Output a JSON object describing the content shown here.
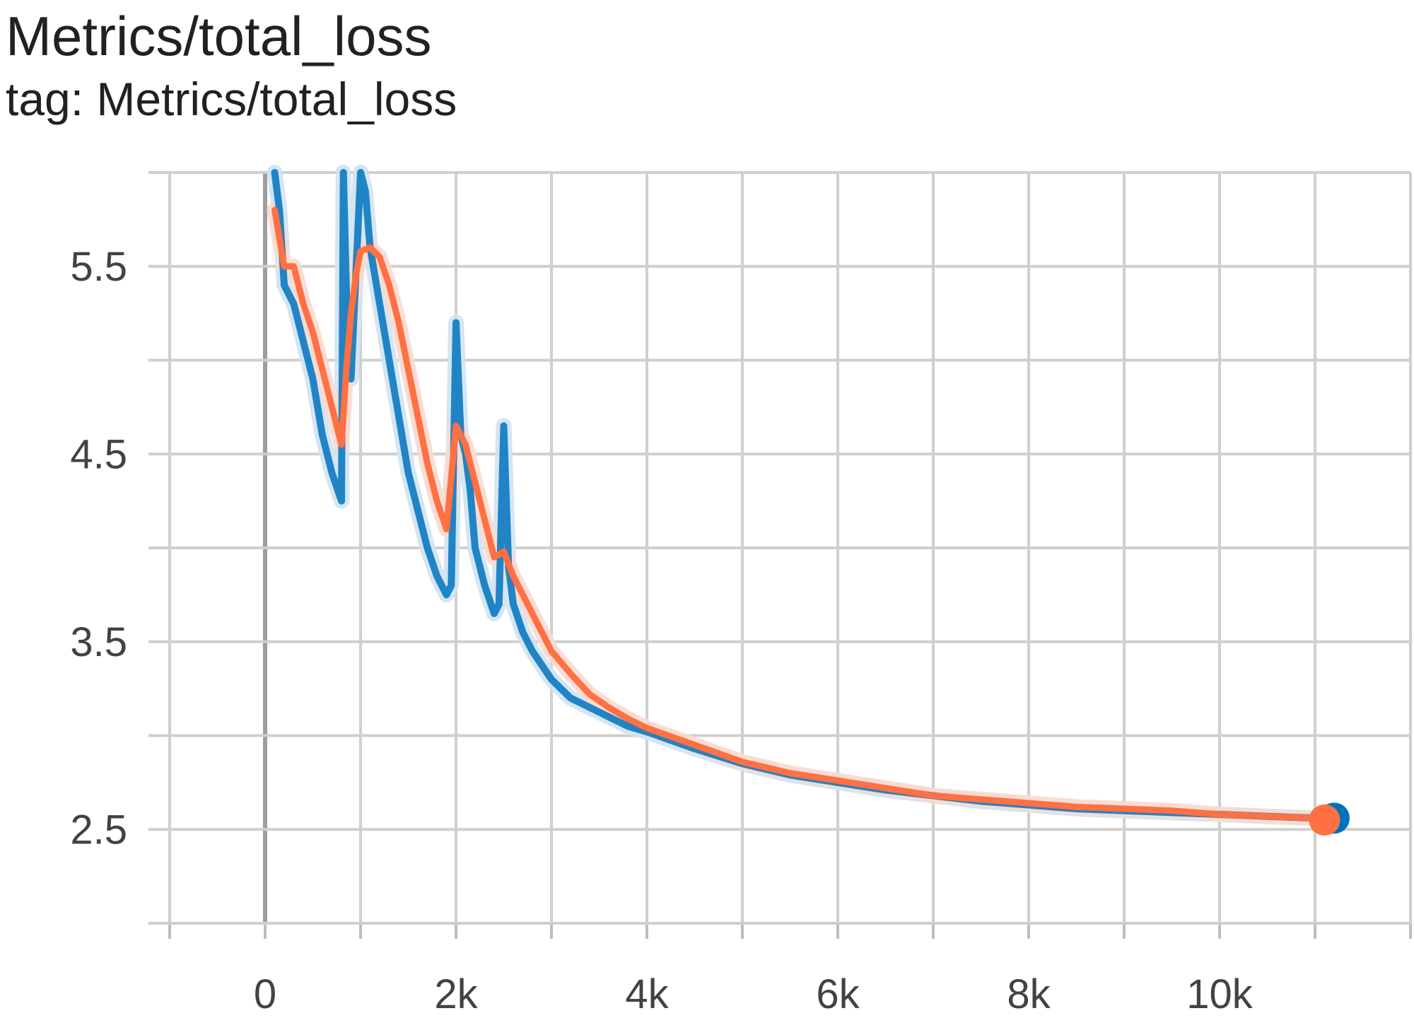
{
  "header": {
    "title": "Metrics/total_loss",
    "tag_line": "tag: Metrics/total_loss"
  },
  "chart_data": {
    "type": "line",
    "title": "Metrics/total_loss",
    "subtitle": "tag: Metrics/total_loss",
    "xlabel": "",
    "ylabel": "",
    "xlim": [
      -1000,
      12000
    ],
    "ylim": [
      2.0,
      6.0
    ],
    "x_ticks": [
      0,
      2000,
      4000,
      6000,
      8000,
      10000
    ],
    "x_tick_labels": [
      "0",
      "2k",
      "4k",
      "6k",
      "8k",
      "10k"
    ],
    "y_ticks": [
      2.5,
      3.5,
      4.5,
      5.5
    ],
    "y_tick_labels": [
      "2.5",
      "3.5",
      "4.5",
      "5.5"
    ],
    "grid": true,
    "series": [
      {
        "color": "#0072bd",
        "shadow_color": "#cfe3f2",
        "x": [
          100,
          150,
          200,
          300,
          400,
          500,
          600,
          700,
          800,
          820,
          860,
          900,
          1000,
          1050,
          1100,
          1200,
          1300,
          1400,
          1500,
          1600,
          1700,
          1800,
          1850,
          1900,
          1950,
          2000,
          2050,
          2100,
          2150,
          2200,
          2300,
          2400,
          2450,
          2500,
          2550,
          2600,
          2700,
          2800,
          3000,
          3200,
          3400,
          3600,
          3800,
          4000,
          4500,
          5000,
          5500,
          6000,
          6500,
          7000,
          7500,
          8000,
          8500,
          9000,
          9500,
          10000,
          10500,
          11000,
          11200
        ],
        "y": [
          6.0,
          5.8,
          5.4,
          5.3,
          5.1,
          4.9,
          4.6,
          4.4,
          4.25,
          6.0,
          5.2,
          4.9,
          6.0,
          5.9,
          5.6,
          5.3,
          5.0,
          4.7,
          4.4,
          4.2,
          4.0,
          3.85,
          3.8,
          3.75,
          3.8,
          5.2,
          4.6,
          4.5,
          4.3,
          4.0,
          3.8,
          3.65,
          3.7,
          4.65,
          3.9,
          3.7,
          3.55,
          3.45,
          3.3,
          3.2,
          3.15,
          3.1,
          3.05,
          3.02,
          2.93,
          2.85,
          2.79,
          2.75,
          2.71,
          2.68,
          2.65,
          2.63,
          2.61,
          2.6,
          2.59,
          2.58,
          2.57,
          2.56,
          2.56
        ]
      },
      {
        "color": "#ff7043",
        "shadow_color": "#fbd9cf",
        "x": [
          100,
          200,
          300,
          400,
          500,
          600,
          700,
          800,
          850,
          900,
          950,
          1000,
          1100,
          1200,
          1300,
          1400,
          1500,
          1600,
          1700,
          1800,
          1900,
          2000,
          2100,
          2200,
          2300,
          2400,
          2500,
          2600,
          2700,
          2800,
          3000,
          3200,
          3400,
          3600,
          3800,
          4000,
          4500,
          5000,
          5500,
          6000,
          6500,
          7000,
          7500,
          8000,
          8500,
          9000,
          9500,
          10000,
          10500,
          11000,
          11100
        ],
        "y": [
          5.8,
          5.5,
          5.5,
          5.3,
          5.15,
          4.95,
          4.75,
          4.55,
          4.95,
          5.25,
          5.45,
          5.58,
          5.6,
          5.55,
          5.4,
          5.2,
          4.95,
          4.7,
          4.45,
          4.25,
          4.1,
          4.65,
          4.55,
          4.35,
          4.15,
          3.95,
          3.98,
          3.85,
          3.75,
          3.65,
          3.45,
          3.33,
          3.22,
          3.15,
          3.09,
          3.04,
          2.95,
          2.86,
          2.8,
          2.76,
          2.72,
          2.68,
          2.66,
          2.64,
          2.62,
          2.61,
          2.6,
          2.58,
          2.57,
          2.56,
          2.55
        ]
      }
    ],
    "end_markers": [
      {
        "series": 0,
        "x": 11200,
        "y": 2.56
      },
      {
        "series": 1,
        "x": 11100,
        "y": 2.55
      }
    ]
  }
}
